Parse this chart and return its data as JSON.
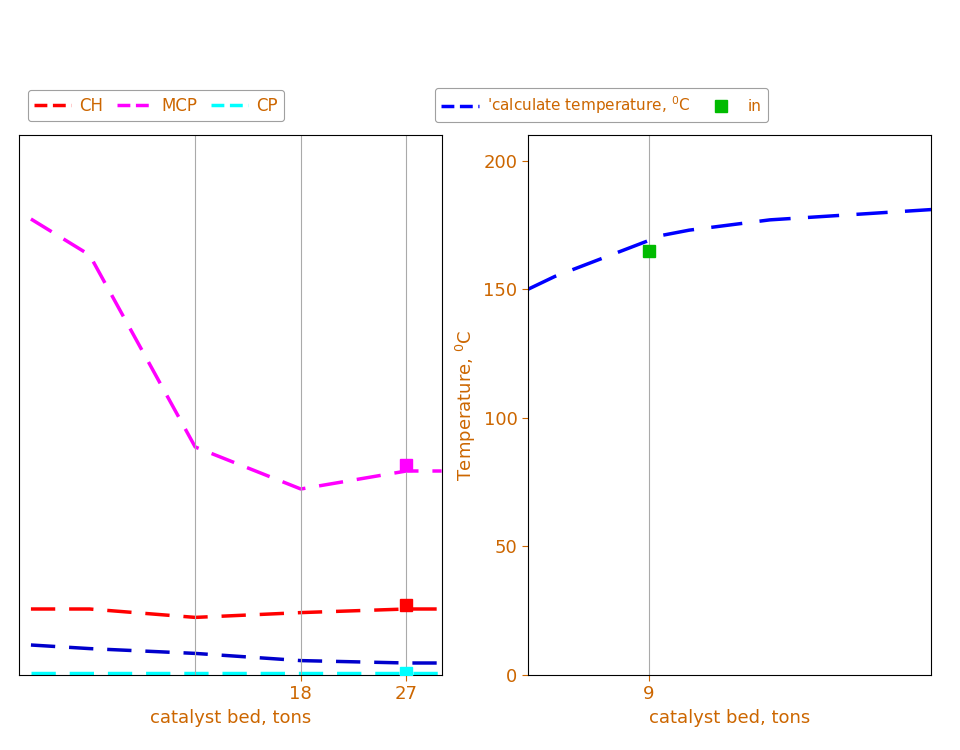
{
  "left_plot": {
    "x": [
      -5,
      0,
      9,
      18,
      27,
      30
    ],
    "ch": [
      0.055,
      0.055,
      0.048,
      0.052,
      0.055,
      0.055
    ],
    "mcp": [
      0.38,
      0.35,
      0.19,
      0.155,
      0.17,
      0.17
    ],
    "cp": [
      0.002,
      0.002,
      0.002,
      0.002,
      0.002,
      0.002
    ],
    "blue_line": [
      0.025,
      0.022,
      0.018,
      0.012,
      0.01,
      0.01
    ],
    "xlim": [
      -6,
      30
    ],
    "xticks": [
      18,
      27
    ],
    "xlabel": "catalyst bed, tons",
    "ylim": [
      0,
      0.45
    ],
    "vlines": [
      9,
      18,
      27
    ],
    "legend_colors": [
      "#ff0000",
      "#ff00ff",
      "#00ffff"
    ],
    "blue_color": "#0000cc",
    "marker_x27_mcp": 0.175,
    "marker_x27_ch": 0.058,
    "marker_x27_cp": 0.002
  },
  "right_plot": {
    "x_calc": [
      0,
      2,
      4,
      6,
      8,
      9,
      10,
      12,
      15,
      18,
      21,
      24,
      27,
      30
    ],
    "y_calc": [
      150,
      155,
      159,
      163,
      167,
      169,
      171,
      173,
      175,
      177,
      178,
      179,
      180,
      181
    ],
    "x_meas": [
      9
    ],
    "y_meas": [
      165
    ],
    "xlim": [
      0,
      30
    ],
    "xticks": [
      9
    ],
    "xlabel": "catalyst bed, tons",
    "ylabel": "Temperature, $^0$C",
    "ylim": [
      0,
      210
    ],
    "yticks": [
      0,
      50,
      100,
      150,
      200
    ],
    "vlines": [
      9
    ],
    "calc_label": "'calculate temperature, $^0$C",
    "meas_label": "in",
    "calc_color": "#0000ff",
    "meas_color": "#00bb00"
  },
  "tick_color": "#cc6600",
  "label_color": "#cc6600",
  "spine_color": "#000000",
  "vline_color": "#aaaaaa",
  "fig_bg": "#ffffff"
}
